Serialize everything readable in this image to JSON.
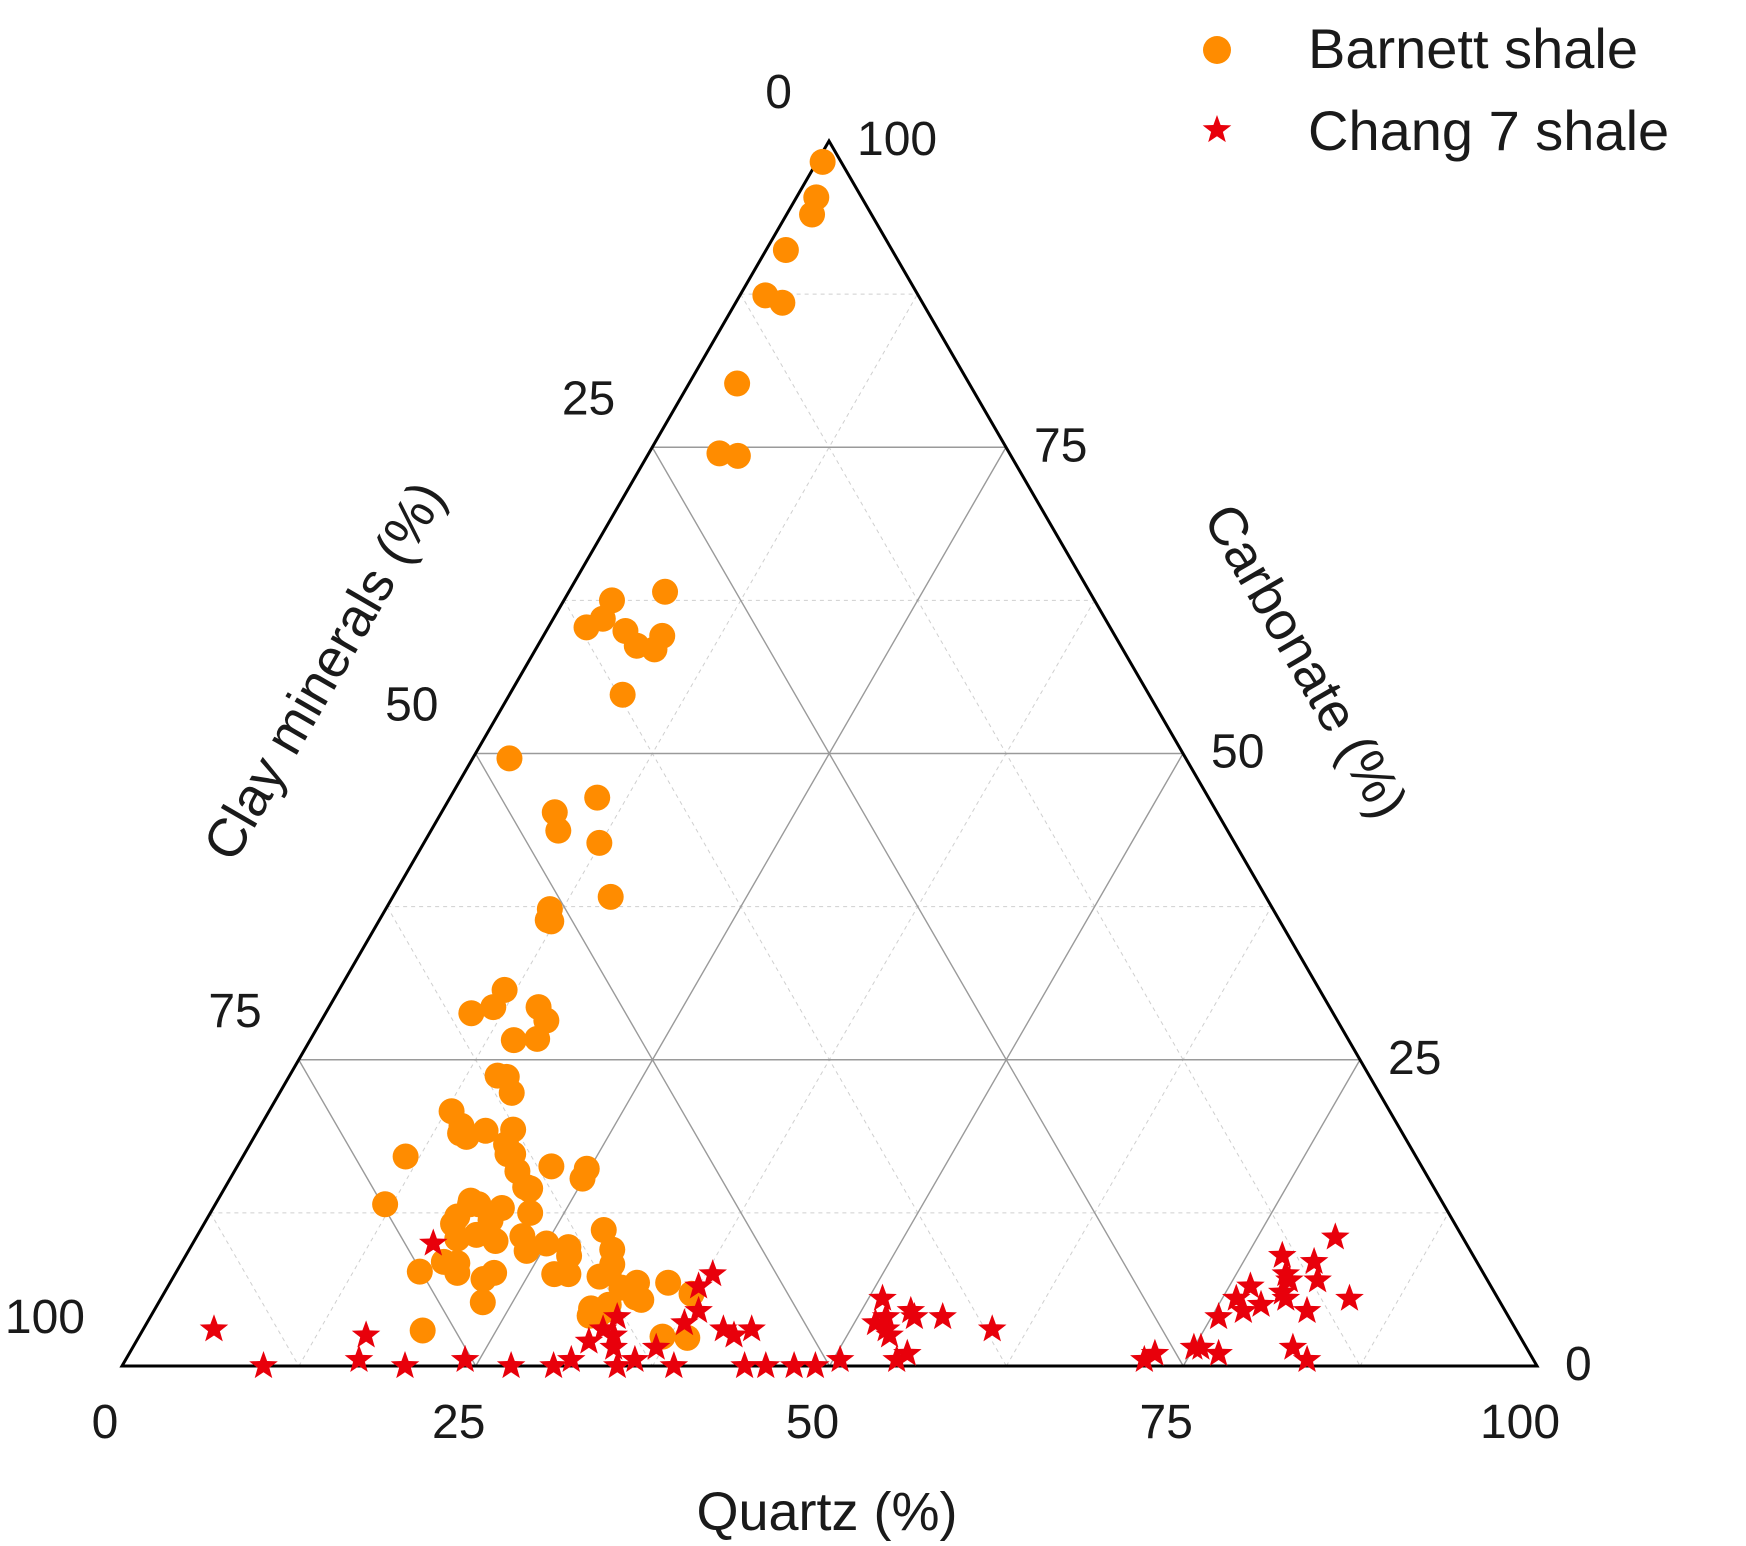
{
  "chart_data": {
    "type": "ternary-scatter",
    "axes": {
      "bottom": {
        "label": "Quartz (%)",
        "range": [
          0,
          100
        ],
        "ticks": [
          0,
          25,
          50,
          75,
          100
        ]
      },
      "left": {
        "label": "Clay minerals (%)",
        "range": [
          0,
          100
        ],
        "ticks": [
          0,
          25,
          50,
          75,
          100
        ]
      },
      "right": {
        "label": "Carbonate (%)",
        "range": [
          0,
          100
        ],
        "ticks": [
          0,
          25,
          50,
          75,
          100
        ]
      }
    },
    "grid": true,
    "legend": {
      "placement": "top-right"
    },
    "series": [
      {
        "name": "Barnett shale",
        "marker": "circle",
        "color": "#FF8C00",
        "points": [
          [
            0.4,
            98.3
          ],
          [
            1.4,
            95.4
          ],
          [
            1.8,
            94.0
          ],
          [
            1.4,
            91.1
          ],
          [
            1.8,
            87.4
          ],
          [
            3.3,
            86.8
          ],
          [
            3.4,
            80.2
          ],
          [
            6.4,
            74.3
          ],
          [
            5.0,
            74.5
          ],
          [
            3.4,
            62.5
          ],
          [
            3.5,
            61.0
          ],
          [
            6.8,
            63.2
          ],
          [
            2.7,
            60.3
          ],
          [
            5.6,
            60.0
          ],
          [
            7.0,
            58.8
          ],
          [
            8.4,
            59.6
          ],
          [
            8.4,
            58.5
          ],
          [
            8.0,
            54.8
          ],
          [
            2.6,
            49.6
          ],
          [
            8.0,
            45.2
          ],
          [
            9.0,
            43.7
          ],
          [
            10.4,
            46.4
          ],
          [
            12.4,
            42.7
          ],
          [
            11.6,
            37.3
          ],
          [
            12.2,
            36.3
          ],
          [
            15.4,
            38.3
          ],
          [
            11.9,
            36.4
          ],
          [
            11.7,
            30.7
          ],
          [
            11.6,
            29.3
          ],
          [
            10.3,
            28.8
          ],
          [
            15.9,
            28.2
          ],
          [
            14.8,
            29.3
          ],
          [
            16.0,
            26.7
          ],
          [
            14.4,
            26.6
          ],
          [
            14.7,
            23.7
          ],
          [
            15.4,
            23.6
          ],
          [
            16.4,
            22.3
          ],
          [
            14.2,
            19.6
          ],
          [
            16.1,
            19.2
          ],
          [
            18.0,
            19.3
          ],
          [
            18.1,
            18.1
          ],
          [
            18.6,
            17.3
          ],
          [
            19.0,
            17.3
          ],
          [
            20.0,
            15.9
          ],
          [
            21.2,
            14.6
          ],
          [
            21.6,
            14.4
          ],
          [
            22.6,
            12.5
          ],
          [
            23.0,
            10.6
          ],
          [
            19.5,
            8.4
          ],
          [
            21.3,
            10.2
          ],
          [
            20.4,
            12.9
          ],
          [
            21.3,
            14.6
          ],
          [
            21.6,
            14.5
          ],
          [
            24.9,
            15.3
          ],
          [
            22.2,
            16.3
          ],
          [
            24.8,
            16.1
          ],
          [
            25.0,
            10.0
          ],
          [
            26.7,
            9.7
          ],
          [
            28.5,
            11.1
          ],
          [
            27.1,
            9.0
          ],
          [
            27.8,
            7.5
          ],
          [
            31.6,
            4.2
          ],
          [
            31.8,
            4.5
          ],
          [
            31.9,
            5.0
          ],
          [
            32.1,
            6.4
          ],
          [
            33.5,
            5.6
          ],
          [
            34.0,
            5.4
          ],
          [
            37.3,
            5.9
          ],
          [
            26.8,
            7.5
          ],
          [
            30.8,
            4.7
          ],
          [
            31.0,
            4.1
          ],
          [
            30.1,
            7.3
          ],
          [
            30.6,
            7.6
          ],
          [
            33.0,
            6.8
          ],
          [
            37.0,
            2.4
          ],
          [
            38.8,
            2.3
          ],
          [
            35.2,
            6.8
          ],
          [
            30.5,
            8.3
          ],
          [
            29.9,
            9.5
          ],
          [
            23.9,
            9.4
          ],
          [
            19.8,
            2.9
          ],
          [
            22.9,
            5.2
          ],
          [
            22.5,
            7.6
          ],
          [
            22.0,
            7.1
          ],
          [
            19.9,
            7.6
          ],
          [
            18.5,
            8.5
          ],
          [
            17.2,
            7.7
          ],
          [
            17.6,
            11.6
          ],
          [
            17.6,
            12.2
          ],
          [
            12.0,
            13.2
          ],
          [
            18.5,
            10.4
          ],
          [
            19.7,
            10.7
          ],
          [
            20.5,
            10.8
          ],
          [
            20.1,
            11.9
          ],
          [
            11.5,
            17.1
          ],
          [
            12.9,
            20.8
          ],
          [
            14.4,
            19.0
          ],
          [
            15.0,
            18.7
          ],
          [
            17.9,
            13.5
          ],
          [
            18.6,
            13.2
          ],
          [
            18.0,
            13.2
          ]
        ]
      },
      {
        "name": "Chang 7 shale",
        "marker": "star",
        "color": "#E8000B",
        "points": [
          [
            5.0,
            3.0
          ],
          [
            10.0,
            0.0
          ],
          [
            16.0,
            2.5
          ],
          [
            16.5,
            0.5
          ],
          [
            20.0,
            0.0
          ],
          [
            24.0,
            0.5
          ],
          [
            17.0,
            10.0
          ],
          [
            27.5,
            0.0
          ],
          [
            30.5,
            0.0
          ],
          [
            31.5,
            0.5
          ],
          [
            32.0,
            2.0
          ],
          [
            32.5,
            3.0
          ],
          [
            33.0,
            4.0
          ],
          [
            33.5,
            2.5
          ],
          [
            34.0,
            1.5
          ],
          [
            35.0,
            0.0
          ],
          [
            36.0,
            0.5
          ],
          [
            37.0,
            1.5
          ],
          [
            37.5,
            6.5
          ],
          [
            38.0,
            7.5
          ],
          [
            38.0,
            3.5
          ],
          [
            38.5,
            4.5
          ],
          [
            39.0,
            0.0
          ],
          [
            41.0,
            3.0
          ],
          [
            42.0,
            2.5
          ],
          [
            43.0,
            3.0
          ],
          [
            44.0,
            0.0
          ],
          [
            45.5,
            0.0
          ],
          [
            47.5,
            0.0
          ],
          [
            49.0,
            0.0
          ],
          [
            50.5,
            0.5
          ],
          [
            51.0,
            5.5
          ],
          [
            51.5,
            3.5
          ],
          [
            52.0,
            4.0
          ],
          [
            52.5,
            3.0
          ],
          [
            53.0,
            2.5
          ],
          [
            53.5,
            4.5
          ],
          [
            54.0,
            4.0
          ],
          [
            54.5,
            0.5
          ],
          [
            55.0,
            1.0
          ],
          [
            56.0,
            4.0
          ],
          [
            60.0,
            3.0
          ],
          [
            72.0,
            0.5
          ],
          [
            72.5,
            1.0
          ],
          [
            75.0,
            1.5
          ],
          [
            75.5,
            4.0
          ],
          [
            76.0,
            5.5
          ],
          [
            76.5,
            6.5
          ],
          [
            77.0,
            4.5
          ],
          [
            77.5,
            9.0
          ],
          [
            78.0,
            5.0
          ],
          [
            78.5,
            7.5
          ],
          [
            79.0,
            6.0
          ],
          [
            79.5,
            5.5
          ],
          [
            80.0,
            8.5
          ],
          [
            80.5,
            10.5
          ],
          [
            81.0,
            7.0
          ],
          [
            81.5,
            4.5
          ],
          [
            82.0,
            1.5
          ],
          [
            83.5,
            0.5
          ],
          [
            84.0,
            5.5
          ],
          [
            75.5,
            1.5
          ],
          [
            77.0,
            1.0
          ],
          [
            79.0,
            7.0
          ]
        ]
      }
    ]
  }
}
